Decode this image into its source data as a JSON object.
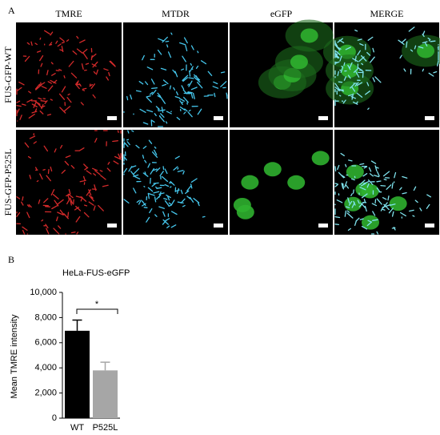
{
  "panel_a": {
    "label": "A",
    "columns": [
      "TMRE",
      "MTDR",
      "eGFP",
      "MERGE"
    ],
    "rows": [
      "FUS-GFP-WT",
      "FUS-GFP-P525L"
    ]
  },
  "panel_b": {
    "label": "B"
  },
  "chart_data": {
    "type": "bar",
    "title": "HeLa-FUS-eGFP",
    "y_label": "Mean TMRE intensity",
    "categories": [
      "WT",
      "P525L"
    ],
    "values": [
      6950,
      3800
    ],
    "errors": [
      850,
      650
    ],
    "colors": [
      "#000000",
      "#a6a6a6"
    ],
    "ylim": [
      0,
      10000
    ],
    "yticks": [
      0,
      {
        "value": 2000,
        "label": "2,000"
      },
      {
        "value": 4000,
        "label": "4,000"
      },
      {
        "value": 6000,
        "label": "6,000"
      },
      {
        "value": 8000,
        "label": "8,000"
      },
      {
        "value": 10000,
        "label": "10,000"
      }
    ],
    "annotation": "*"
  }
}
